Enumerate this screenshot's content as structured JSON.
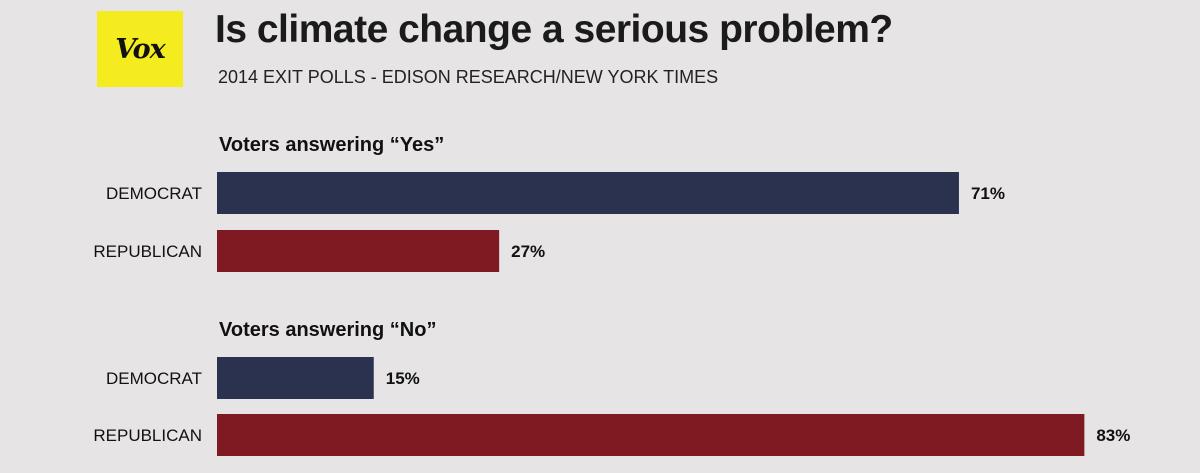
{
  "brand": {
    "logo_text": "Vox",
    "logo_color": "#f4ec1e"
  },
  "chart_data": {
    "type": "bar",
    "orientation": "horizontal",
    "title": "Is climate change a serious problem?",
    "subtitle": "2014 EXIT POLLS - EDISON RESEARCH/NEW YORK TIMES",
    "xlim": [
      0,
      100
    ],
    "unit": "%",
    "grid": false,
    "groups": [
      {
        "title": "Voters answering “Yes”",
        "bars": [
          {
            "category": "DEMOCRAT",
            "value": 71,
            "label": "71%",
            "color": "#2b3250"
          },
          {
            "category": "REPUBLICAN",
            "value": 27,
            "label": "27%",
            "color": "#7f1a22"
          }
        ]
      },
      {
        "title": "Voters answering “No”",
        "bars": [
          {
            "category": "DEMOCRAT",
            "value": 15,
            "label": "15%",
            "color": "#2b3250"
          },
          {
            "category": "REPUBLICAN",
            "value": 83,
            "label": "83%",
            "color": "#7f1a22"
          }
        ]
      }
    ]
  }
}
